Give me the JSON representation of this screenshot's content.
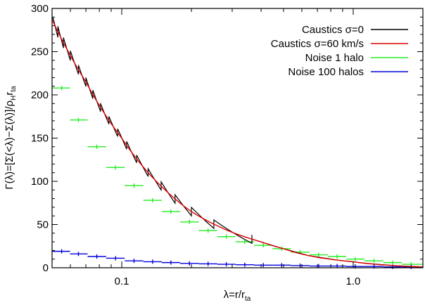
{
  "chart_data": {
    "type": "line",
    "xlabel": "λ=r/r",
    "xlabel_sub": "ta",
    "ylabel": "Γ(λ)=[Σ(<λ)−Σ(λ)]/ρ",
    "ylabel_sub1": "H",
    "ylabel_mid": "r",
    "ylabel_sub2": "ta",
    "x_scale": "log",
    "xlim": [
      0.05,
      2.0
    ],
    "ylim": [
      0,
      300
    ],
    "x_ticks": [
      0.1,
      1.0
    ],
    "x_tick_labels": [
      "0.1",
      "1.0"
    ],
    "y_ticks": [
      0,
      50,
      100,
      150,
      200,
      250,
      300
    ],
    "y_tick_labels": [
      "0",
      "50",
      "100",
      "150",
      "200",
      "250",
      "300"
    ],
    "grid": false,
    "legend_position": "top-right",
    "legend": [
      {
        "label": "Caustics σ=0",
        "color": "#000000"
      },
      {
        "label": "Caustics σ=60 km/s",
        "color": "#e00000"
      },
      {
        "label": "Noise 1 halo",
        "color": "#22ee22"
      },
      {
        "label": "Noise 100 halos",
        "color": "#0000dd"
      }
    ],
    "series": [
      {
        "name": "Caustics σ=0",
        "color": "#000000",
        "style": "sawtooth",
        "x": [
          0.05,
          0.07,
          0.1,
          0.15,
          0.2,
          0.3,
          0.4,
          0.5,
          0.7,
          1.0,
          1.5,
          2.0
        ],
        "y": [
          287,
          215,
          150,
          93,
          65,
          41,
          30,
          22,
          12,
          7,
          2.5,
          1
        ],
        "caustic_x": [
          0.053,
          0.056,
          0.06,
          0.065,
          0.07,
          0.075,
          0.081,
          0.088,
          0.096,
          0.105,
          0.116,
          0.13,
          0.148,
          0.17,
          0.2,
          0.25,
          0.365
        ]
      },
      {
        "name": "Caustics σ=60 km/s",
        "color": "#e00000",
        "x": [
          0.05,
          0.07,
          0.1,
          0.15,
          0.2,
          0.3,
          0.4,
          0.5,
          0.7,
          1.0,
          1.5,
          2.0
        ],
        "y": [
          287,
          215,
          150,
          93,
          65,
          41,
          30,
          22,
          12,
          7,
          2.5,
          1
        ]
      },
      {
        "name": "Noise 1 halo",
        "color": "#22ee22",
        "style": "step-errorbars",
        "points": [
          {
            "x": 0.055,
            "y": 208
          },
          {
            "x": 0.065,
            "y": 171
          },
          {
            "x": 0.078,
            "y": 140
          },
          {
            "x": 0.094,
            "y": 116
          },
          {
            "x": 0.113,
            "y": 95
          },
          {
            "x": 0.136,
            "y": 78
          },
          {
            "x": 0.163,
            "y": 65
          },
          {
            "x": 0.196,
            "y": 53
          },
          {
            "x": 0.236,
            "y": 43
          },
          {
            "x": 0.283,
            "y": 36
          },
          {
            "x": 0.34,
            "y": 30
          },
          {
            "x": 0.409,
            "y": 26
          },
          {
            "x": 0.491,
            "y": 22
          },
          {
            "x": 0.59,
            "y": 18
          },
          {
            "x": 0.709,
            "y": 15
          },
          {
            "x": 0.852,
            "y": 13
          },
          {
            "x": 1.02,
            "y": 10
          },
          {
            "x": 1.23,
            "y": 8
          },
          {
            "x": 1.48,
            "y": 6
          },
          {
            "x": 1.78,
            "y": 4
          }
        ]
      },
      {
        "name": "Noise 100 halos",
        "color": "#0000dd",
        "style": "step-errorbars",
        "points": [
          {
            "x": 0.055,
            "y": 19
          },
          {
            "x": 0.065,
            "y": 16
          },
          {
            "x": 0.078,
            "y": 13
          },
          {
            "x": 0.094,
            "y": 11
          },
          {
            "x": 0.113,
            "y": 8
          },
          {
            "x": 0.136,
            "y": 7
          },
          {
            "x": 0.163,
            "y": 6
          },
          {
            "x": 0.196,
            "y": 5
          },
          {
            "x": 0.236,
            "y": 4.5
          },
          {
            "x": 0.283,
            "y": 4
          },
          {
            "x": 0.34,
            "y": 3.5
          },
          {
            "x": 0.409,
            "y": 3
          },
          {
            "x": 0.491,
            "y": 3
          },
          {
            "x": 0.59,
            "y": 2.5
          },
          {
            "x": 0.709,
            "y": 2
          },
          {
            "x": 0.852,
            "y": 2
          },
          {
            "x": 1.02,
            "y": 1.5
          },
          {
            "x": 1.23,
            "y": 1.5
          },
          {
            "x": 1.48,
            "y": 1
          },
          {
            "x": 1.78,
            "y": 1
          }
        ]
      }
    ]
  }
}
